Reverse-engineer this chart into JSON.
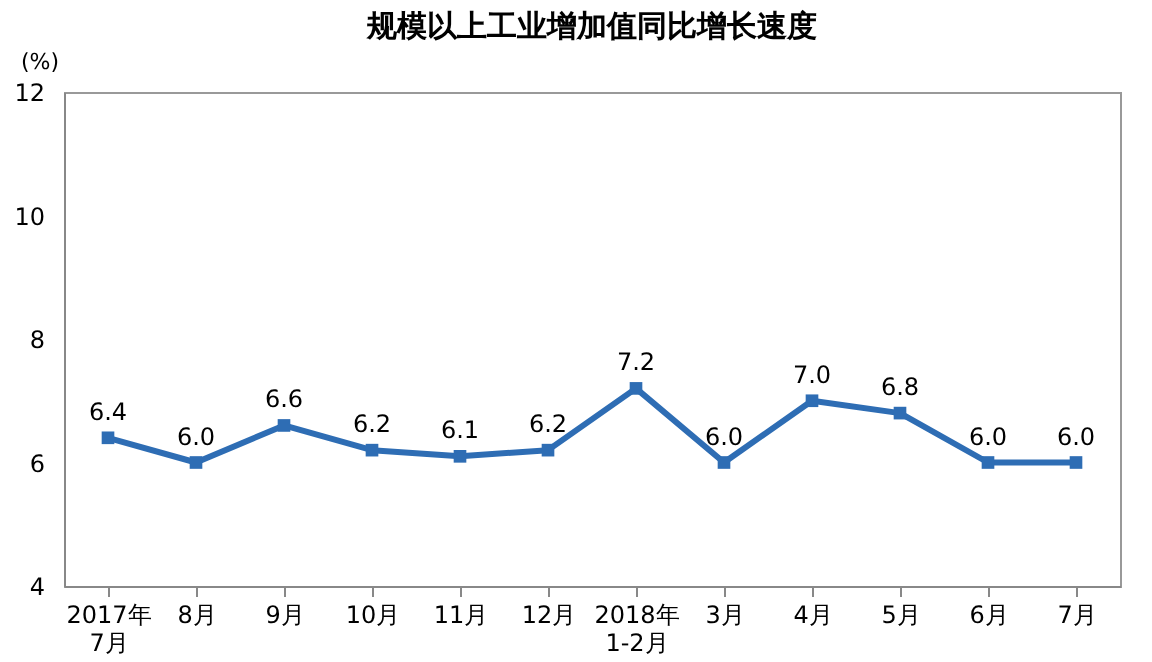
{
  "chart_data": {
    "type": "line",
    "title": "规模以上工业增加值同比增长速度",
    "ylabel": "(%)",
    "categories": [
      "2017年\n7月",
      "8月",
      "9月",
      "10月",
      "11月",
      "12月",
      "2018年\n1-2月",
      "3月",
      "4月",
      "5月",
      "6月",
      "7月"
    ],
    "series": [
      {
        "color": "#2e6db4",
        "values": [
          6.4,
          6.0,
          6.6,
          6.2,
          6.1,
          6.2,
          7.2,
          6.0,
          7.0,
          6.8,
          6.0,
          6.0
        ],
        "value_labels": [
          "6.4",
          "6.0",
          "6.6",
          "6.2",
          "6.1",
          "6.2",
          "7.2",
          "6.0",
          "7.0",
          "6.8",
          "6.0",
          "6.0"
        ]
      }
    ],
    "ylim": [
      4,
      12
    ],
    "yticks": [
      4,
      6,
      8,
      10,
      12
    ],
    "marker": "square",
    "line_style": "solid",
    "grid": false
  }
}
